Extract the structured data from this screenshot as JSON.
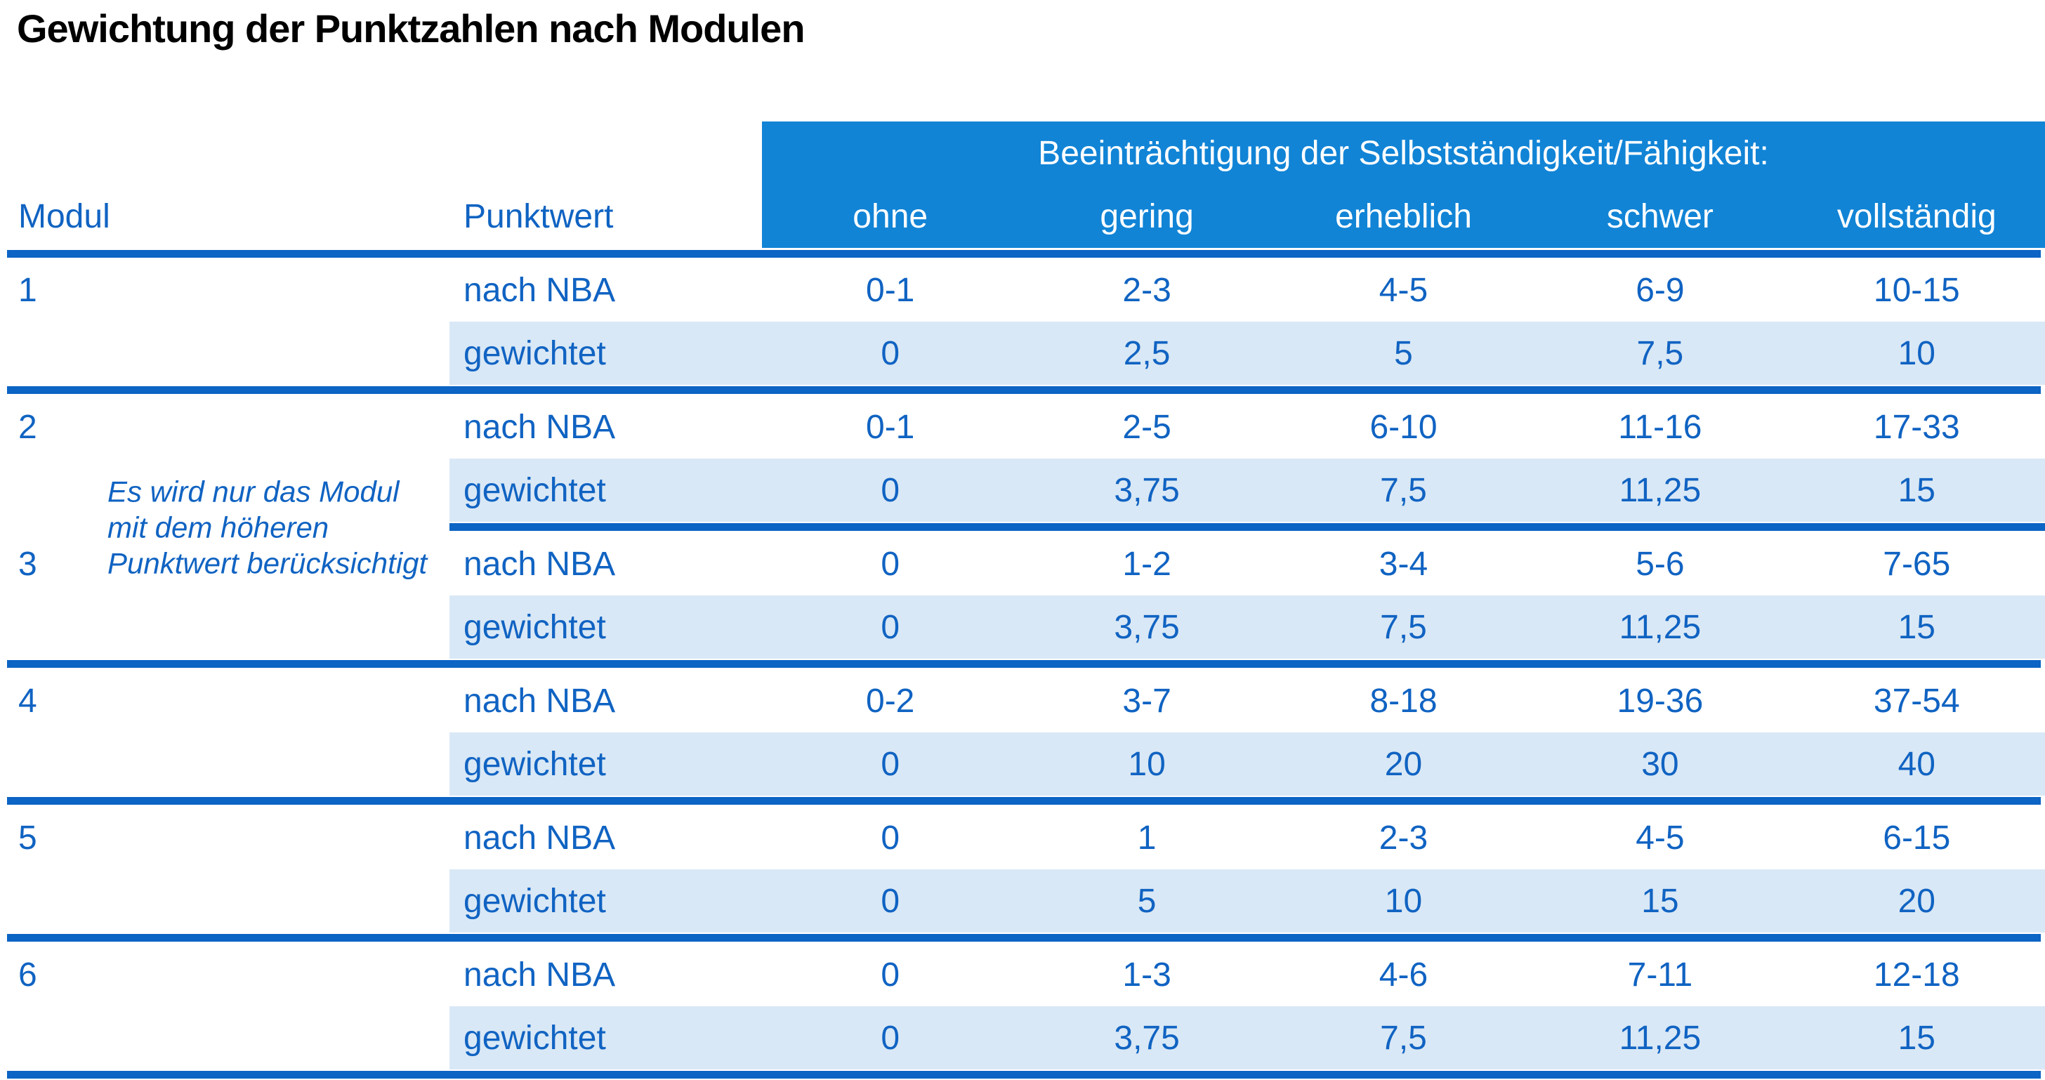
{
  "title": "Gewichtung der Punktzahlen nach Modulen",
  "colors": {
    "header_band": "#1184D6",
    "rule": "#0C64C4",
    "text_blue": "#1063C2",
    "weighted_row_bg": "#D9E8F6",
    "title_color": "#000000"
  },
  "table": {
    "group_header": "Beeinträchtigung der Selbstständigkeit/Fähigkeit:",
    "col_headers": {
      "modul": "Modul",
      "punktwert": "Punktwert"
    },
    "severity_levels": [
      "ohne",
      "gering",
      "erheblich",
      "schwer",
      "vollständig"
    ],
    "row_labels": {
      "nba": "nach NBA",
      "weighted": "gewichtet"
    },
    "note": {
      "lines": [
        "Es wird nur das Modul",
        "mit dem höheren",
        "Punktwert berücksichtigt"
      ]
    },
    "modules": [
      {
        "id": "1",
        "nba": [
          "0-1",
          "2-3",
          "4-5",
          "6-9",
          "10-15"
        ],
        "weighted": [
          "0",
          "2,5",
          "5",
          "7,5",
          "10"
        ]
      },
      {
        "id": "2",
        "nba": [
          "0-1",
          "2-5",
          "6-10",
          "11-16",
          "17-33"
        ],
        "weighted": [
          "0",
          "3,75",
          "7,5",
          "11,25",
          "15"
        ]
      },
      {
        "id": "3",
        "nba": [
          "0",
          "1-2",
          "3-4",
          "5-6",
          "7-65"
        ],
        "weighted": [
          "0",
          "3,75",
          "7,5",
          "11,25",
          "15"
        ]
      },
      {
        "id": "4",
        "nba": [
          "0-2",
          "3-7",
          "8-18",
          "19-36",
          "37-54"
        ],
        "weighted": [
          "0",
          "10",
          "20",
          "30",
          "40"
        ]
      },
      {
        "id": "5",
        "nba": [
          "0",
          "1",
          "2-3",
          "4-5",
          "6-15"
        ],
        "weighted": [
          "0",
          "5",
          "10",
          "15",
          "20"
        ]
      },
      {
        "id": "6",
        "nba": [
          "0",
          "1-3",
          "4-6",
          "7-11",
          "12-18"
        ],
        "weighted": [
          "0",
          "3,75",
          "7,5",
          "11,25",
          "15"
        ]
      }
    ]
  }
}
